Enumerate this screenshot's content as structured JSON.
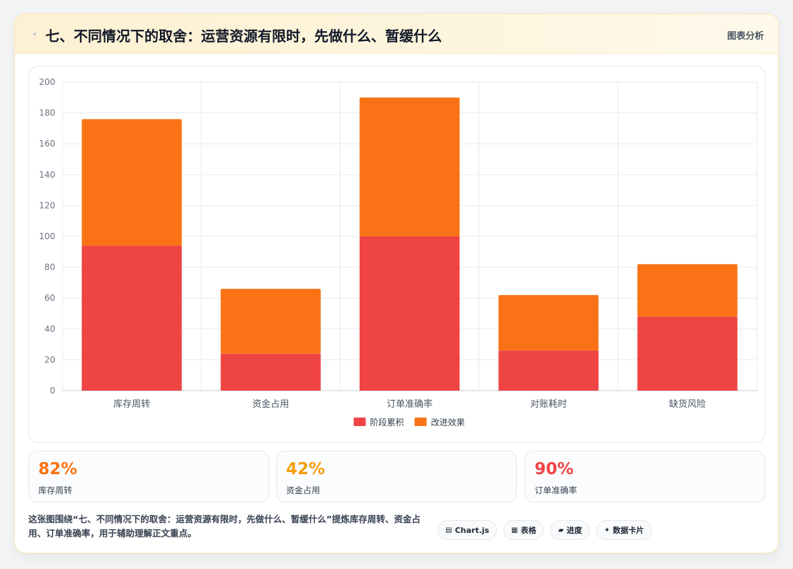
{
  "header": {
    "title": "七、不同情况下的取舍：运营资源有限时，先做什么、暂缓什么",
    "tag": "图表分析",
    "icon": "lightning-icon"
  },
  "chart_data": {
    "type": "bar",
    "stacked": true,
    "categories": [
      "库存周转",
      "资金占用",
      "订单准确率",
      "对账耗时",
      "缺货风险"
    ],
    "series": [
      {
        "name": "阶段累积",
        "values": [
          94,
          24,
          100,
          26,
          48
        ],
        "color": "#ef4444"
      },
      {
        "name": "改进效果",
        "values": [
          82,
          42,
          90,
          36,
          34
        ],
        "color": "#f97316"
      }
    ],
    "ylim": [
      0,
      200
    ],
    "yticks": [
      0,
      20,
      40,
      60,
      80,
      100,
      120,
      140,
      160,
      180,
      200
    ],
    "grid": true,
    "legend_position": "bottom"
  },
  "stats": [
    {
      "value": "82%",
      "label": "库存周转",
      "color": "#f97316"
    },
    {
      "value": "42%",
      "label": "资金占用",
      "color": "#f59e0b"
    },
    {
      "value": "90%",
      "label": "订单准确率",
      "color": "#ef4444"
    }
  ],
  "footer": {
    "text": "这张图围绕“七、不同情况下的取舍：运营资源有限时，先做什么、暂缓什么”提炼库存周转、资金占用、订单准确率，用于辅助理解正文重点。"
  },
  "badges": [
    {
      "icon": "▤",
      "icon_name": "chart-icon",
      "label": "Chart.js"
    },
    {
      "icon": "▦",
      "icon_name": "table-icon",
      "label": "表格"
    },
    {
      "icon": "▰",
      "icon_name": "progress-icon",
      "label": "进度"
    },
    {
      "icon": "✦",
      "icon_name": "sparkle-icon",
      "label": "数据卡片"
    }
  ]
}
